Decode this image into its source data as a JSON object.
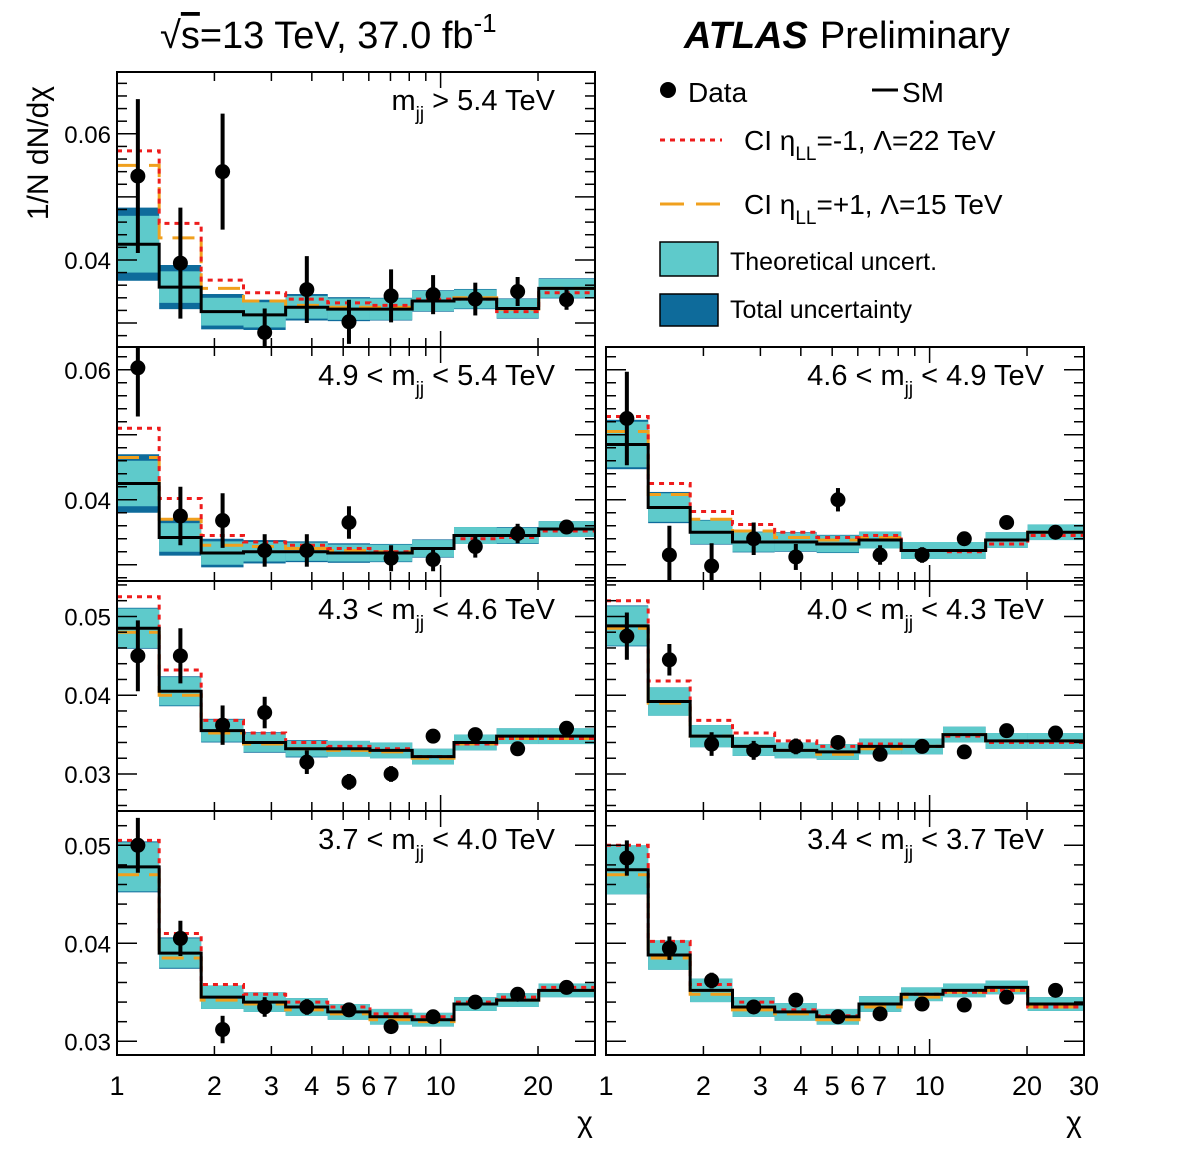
{
  "header": {
    "energy_prefix": "√",
    "energy_s": "s",
    "energy_main": "=13 TeV, 37.0 fb",
    "energy_sup": "-1",
    "atlas": "ATLAS",
    "preliminary": "Preliminary"
  },
  "legend": {
    "data": "Data",
    "sm": "SM",
    "ci_minus_pre": "CI η",
    "ci_minus_sub": "LL",
    "ci_minus_post": "=-1, Λ=22 TeV",
    "ci_plus_pre": "CI η",
    "ci_plus_sub": "LL",
    "ci_plus_post": "=+1, Λ=15 TeV",
    "theory": "Theoretical uncert.",
    "total": "Total uncertainty"
  },
  "colors": {
    "ci_minus": "#ee1c1c",
    "ci_plus": "#f0a01e",
    "theory": "#5ecacb",
    "total": "#0e6b9b",
    "data": "#000000",
    "sm": "#000000"
  },
  "chart_data": {
    "type": "line",
    "ylabel": "1/N dN/dχ",
    "xlabel": "χ",
    "xscale": "log",
    "xlim": [
      1,
      30
    ],
    "x_ticklabels_left": [
      "1",
      "2",
      "3",
      "4",
      "5",
      "6",
      "7",
      "10",
      "20"
    ],
    "x_ticklabels_right": [
      "1",
      "2",
      "3",
      "4",
      "5",
      "6",
      "7",
      "10",
      "20",
      "30"
    ],
    "x_ticklabel_values_left": [
      1,
      2,
      3,
      4,
      5,
      6,
      7,
      10,
      20
    ],
    "x_ticklabel_values_right": [
      1,
      2,
      3,
      4,
      5,
      6,
      7,
      10,
      20,
      30
    ],
    "bin_edges": [
      1.0,
      1.35,
      1.82,
      2.46,
      3.32,
      4.48,
      6.05,
      8.17,
      11.0,
      14.9,
      20.1,
      30.0
    ],
    "bin_centers": [
      1.16,
      1.57,
      2.12,
      2.86,
      3.86,
      5.21,
      7.03,
      9.48,
      12.8,
      17.3,
      24.5
    ],
    "panels": [
      {
        "label_pre": "m",
        "label_sub": "jj",
        "label_post": " > 5.4 TeV",
        "ylim": [
          0.0262,
          0.0698
        ],
        "yticks": [
          0.04,
          0.06
        ],
        "yticklabels": [
          "0.04",
          "0.06"
        ],
        "data": [
          0.0533,
          0.0395,
          0.054,
          0.0285,
          0.0353,
          0.0302,
          0.0343,
          0.0345,
          0.0338,
          0.035,
          0.0337
        ],
        "data_err": [
          0.0122,
          0.0088,
          0.0092,
          0.0038,
          0.0053,
          0.0035,
          0.0042,
          0.0031,
          0.0026,
          0.0023,
          0.0016
        ],
        "sm": [
          0.0425,
          0.0357,
          0.0318,
          0.0313,
          0.0325,
          0.0322,
          0.0322,
          0.0335,
          0.0338,
          0.0323,
          0.0355
        ],
        "theory_err": [
          0.0045,
          0.0025,
          0.0022,
          0.002,
          0.0018,
          0.0017,
          0.0017,
          0.0016,
          0.0015,
          0.0015,
          0.0015
        ],
        "total_err": [
          0.0058,
          0.0035,
          0.0028,
          0.0024,
          0.0021,
          0.0019,
          0.0018,
          0.0017,
          0.0016,
          0.0016,
          0.0016
        ],
        "ci_minus": [
          0.0573,
          0.0458,
          0.0368,
          0.0348,
          0.0338,
          0.0332,
          0.0328,
          0.0338,
          0.0338,
          0.0318,
          0.0348
        ],
        "ci_plus": [
          0.055,
          0.0435,
          0.0355,
          0.0335,
          0.0328,
          0.0325,
          0.0325,
          0.0335,
          0.034,
          0.0322,
          0.0355
        ]
      },
      {
        "label_pre": "4.9 < m",
        "label_sub": "jj",
        "label_post": " < 5.4 TeV",
        "ylim": [
          0.0275,
          0.0635
        ],
        "yticks": [
          0.04,
          0.06
        ],
        "yticklabels": [
          "0.04",
          "0.06"
        ],
        "data": [
          0.0603,
          0.0375,
          0.0368,
          0.0322,
          0.0322,
          0.0365,
          0.031,
          0.0308,
          0.0328,
          0.0348,
          0.0358
        ],
        "data_err": [
          0.0075,
          0.0045,
          0.0042,
          0.0025,
          0.0025,
          0.0025,
          0.002,
          0.0018,
          0.0017,
          0.0015,
          0.001
        ],
        "sm": [
          0.0425,
          0.0342,
          0.0318,
          0.032,
          0.032,
          0.0318,
          0.0318,
          0.0325,
          0.0345,
          0.0345,
          0.0355
        ],
        "theory_err": [
          0.0035,
          0.0022,
          0.0018,
          0.0015,
          0.0014,
          0.0013,
          0.0013,
          0.0013,
          0.0013,
          0.0012,
          0.0012
        ],
        "total_err": [
          0.0045,
          0.0028,
          0.0022,
          0.0018,
          0.0016,
          0.0015,
          0.0014,
          0.0014,
          0.0013,
          0.0013,
          0.0012
        ],
        "ci_minus": [
          0.051,
          0.0402,
          0.0345,
          0.0335,
          0.033,
          0.0325,
          0.032,
          0.0325,
          0.034,
          0.0342,
          0.0352
        ],
        "ci_plus": [
          0.0465,
          0.037,
          0.033,
          0.0328,
          0.0325,
          0.0322,
          0.032,
          0.0325,
          0.0345,
          0.0345,
          0.0355
        ]
      },
      {
        "label_pre": "4.6 < m",
        "label_sub": "jj",
        "label_post": " < 4.9 TeV",
        "ylim": [
          0.0275,
          0.0635
        ],
        "yticks": [],
        "yticklabels": [],
        "data": [
          0.0525,
          0.0315,
          0.0298,
          0.034,
          0.0312,
          0.04,
          0.0315,
          0.0315,
          0.034,
          0.0365,
          0.035
        ],
        "data_err": [
          0.0072,
          0.0045,
          0.0035,
          0.0025,
          0.002,
          0.0018,
          0.0015,
          0.0012,
          0.0011,
          0.001,
          0.0006
        ],
        "sm": [
          0.0485,
          0.0388,
          0.035,
          0.0335,
          0.0335,
          0.0332,
          0.0338,
          0.0322,
          0.0322,
          0.0338,
          0.035
        ],
        "theory_err": [
          0.0035,
          0.0022,
          0.0018,
          0.0015,
          0.0014,
          0.0013,
          0.0013,
          0.0013,
          0.0013,
          0.0012,
          0.0012
        ],
        "total_err": [
          0.0038,
          0.0024,
          0.0019,
          0.0016,
          0.0015,
          0.0014,
          0.0013,
          0.0013,
          0.0013,
          0.0012,
          0.0012
        ],
        "ci_minus": [
          0.0528,
          0.0425,
          0.0382,
          0.0362,
          0.035,
          0.0342,
          0.0345,
          0.0322,
          0.032,
          0.0332,
          0.0345
        ],
        "ci_plus": [
          0.0505,
          0.0408,
          0.037,
          0.0352,
          0.0342,
          0.0338,
          0.0342,
          0.0322,
          0.0322,
          0.0338,
          0.035
        ]
      },
      {
        "label_pre": "4.3 < m",
        "label_sub": "jj",
        "label_post": " < 4.6 TeV",
        "ylim": [
          0.0253,
          0.0545
        ],
        "yticks": [
          0.03,
          0.04,
          0.05
        ],
        "yticklabels": [
          "0.03",
          "0.04",
          "0.05"
        ],
        "data": [
          0.045,
          0.045,
          0.0362,
          0.0378,
          0.0315,
          0.029,
          0.03,
          0.0348,
          0.035,
          0.0332,
          0.0358
        ],
        "data_err": [
          0.0045,
          0.0035,
          0.0025,
          0.002,
          0.0015,
          0.001,
          0.001,
          0.0009,
          0.0008,
          0.0007,
          0.0006
        ],
        "sm": [
          0.0485,
          0.0405,
          0.0355,
          0.034,
          0.0332,
          0.0332,
          0.033,
          0.0322,
          0.034,
          0.0348,
          0.0348
        ],
        "theory_err": [
          0.0025,
          0.0018,
          0.0014,
          0.0012,
          0.001,
          0.001,
          0.001,
          0.001,
          0.001,
          0.001,
          0.001
        ],
        "total_err": [
          0.0026,
          0.0019,
          0.0015,
          0.0013,
          0.0011,
          0.001,
          0.001,
          0.001,
          0.001,
          0.001,
          0.001
        ],
        "ci_minus": [
          0.0525,
          0.0432,
          0.0368,
          0.0352,
          0.034,
          0.0335,
          0.0332,
          0.0322,
          0.0338,
          0.0345,
          0.0345
        ],
        "ci_plus": [
          0.048,
          0.04,
          0.0352,
          0.0338,
          0.0332,
          0.033,
          0.0328,
          0.032,
          0.0338,
          0.0345,
          0.0345
        ]
      },
      {
        "label_pre": "4.0 < m",
        "label_sub": "jj",
        "label_post": " < 4.3 TeV",
        "ylim": [
          0.0253,
          0.0545
        ],
        "yticks": [],
        "yticklabels": [],
        "data": [
          0.0475,
          0.0445,
          0.0338,
          0.033,
          0.0335,
          0.034,
          0.0325,
          0.0335,
          0.0328,
          0.0355,
          0.0352
        ],
        "data_err": [
          0.003,
          0.002,
          0.0015,
          0.0012,
          0.001,
          0.0008,
          0.0007,
          0.0006,
          0.0005,
          0.0005,
          0.0004
        ],
        "sm": [
          0.0488,
          0.0392,
          0.0348,
          0.0335,
          0.033,
          0.0328,
          0.0335,
          0.0335,
          0.035,
          0.0342,
          0.0342
        ],
        "theory_err": [
          0.0025,
          0.0018,
          0.0014,
          0.0012,
          0.001,
          0.001,
          0.001,
          0.001,
          0.001,
          0.001,
          0.001
        ],
        "total_err": [
          0.0026,
          0.0018,
          0.0014,
          0.0012,
          0.001,
          0.001,
          0.001,
          0.001,
          0.001,
          0.001,
          0.001
        ],
        "ci_minus": [
          0.052,
          0.0418,
          0.0368,
          0.0352,
          0.0342,
          0.0335,
          0.0338,
          0.0335,
          0.0348,
          0.034,
          0.034
        ],
        "ci_plus": [
          0.0485,
          0.039,
          0.0348,
          0.0335,
          0.033,
          0.0325,
          0.0332,
          0.0335,
          0.035,
          0.0342,
          0.0342
        ]
      },
      {
        "label_pre": "3.7 < m",
        "label_sub": "jj",
        "label_post": " < 4.0 TeV",
        "ylim": [
          0.0286,
          0.0535
        ],
        "yticks": [
          0.03,
          0.04,
          0.05
        ],
        "yticklabels": [
          "0.03",
          "0.04",
          "0.05"
        ],
        "data": [
          0.05,
          0.0405,
          0.0312,
          0.0335,
          0.0335,
          0.0332,
          0.0315,
          0.0325,
          0.034,
          0.0348,
          0.0355
        ],
        "data_err": [
          0.0028,
          0.0018,
          0.0014,
          0.001,
          0.0008,
          0.0007,
          0.0005,
          0.0004,
          0.0004,
          0.0003,
          0.0003
        ],
        "sm": [
          0.0478,
          0.039,
          0.0345,
          0.034,
          0.0335,
          0.033,
          0.0325,
          0.0322,
          0.0338,
          0.0342,
          0.0352
        ],
        "theory_err": [
          0.0025,
          0.0015,
          0.0012,
          0.001,
          0.0009,
          0.0008,
          0.0008,
          0.0007,
          0.0007,
          0.0007,
          0.0007
        ],
        "total_err": [
          0.0026,
          0.0016,
          0.0012,
          0.001,
          0.0009,
          0.0008,
          0.0008,
          0.0007,
          0.0007,
          0.0007,
          0.0007
        ],
        "ci_minus": [
          0.0505,
          0.041,
          0.0358,
          0.0348,
          0.034,
          0.0335,
          0.0328,
          0.0325,
          0.034,
          0.0345,
          0.0355
        ],
        "ci_plus": [
          0.047,
          0.0385,
          0.0342,
          0.0338,
          0.0332,
          0.0328,
          0.0322,
          0.032,
          0.0338,
          0.0342,
          0.0352
        ]
      },
      {
        "label_pre": "3.4 < m",
        "label_sub": "jj",
        "label_post": " < 3.7 TeV",
        "ylim": [
          0.0286,
          0.0535
        ],
        "yticks": [],
        "yticklabels": [],
        "data": [
          0.0487,
          0.0395,
          0.0362,
          0.0335,
          0.0342,
          0.0325,
          0.0328,
          0.0338,
          0.0337,
          0.0345,
          0.0352
        ],
        "data_err": [
          0.0018,
          0.0012,
          0.0008,
          0.0006,
          0.0005,
          0.0004,
          0.0003,
          0.0003,
          0.0003,
          0.0003,
          0.0003
        ],
        "sm": [
          0.0475,
          0.0388,
          0.0352,
          0.0335,
          0.033,
          0.0325,
          0.0338,
          0.0348,
          0.0352,
          0.0355,
          0.0338
        ],
        "theory_err": [
          0.0025,
          0.0015,
          0.0012,
          0.001,
          0.0009,
          0.0008,
          0.0008,
          0.0007,
          0.0007,
          0.0007,
          0.0007
        ],
        "total_err": [
          0.0025,
          0.0015,
          0.0012,
          0.001,
          0.0009,
          0.0008,
          0.0008,
          0.0007,
          0.0007,
          0.0007,
          0.0007
        ],
        "ci_minus": [
          0.05,
          0.0402,
          0.0358,
          0.034,
          0.0332,
          0.0326,
          0.0338,
          0.0348,
          0.035,
          0.0352,
          0.0335
        ],
        "ci_plus": [
          0.047,
          0.0385,
          0.0348,
          0.0332,
          0.0328,
          0.0322,
          0.0335,
          0.0345,
          0.035,
          0.0352,
          0.0335
        ]
      }
    ]
  }
}
